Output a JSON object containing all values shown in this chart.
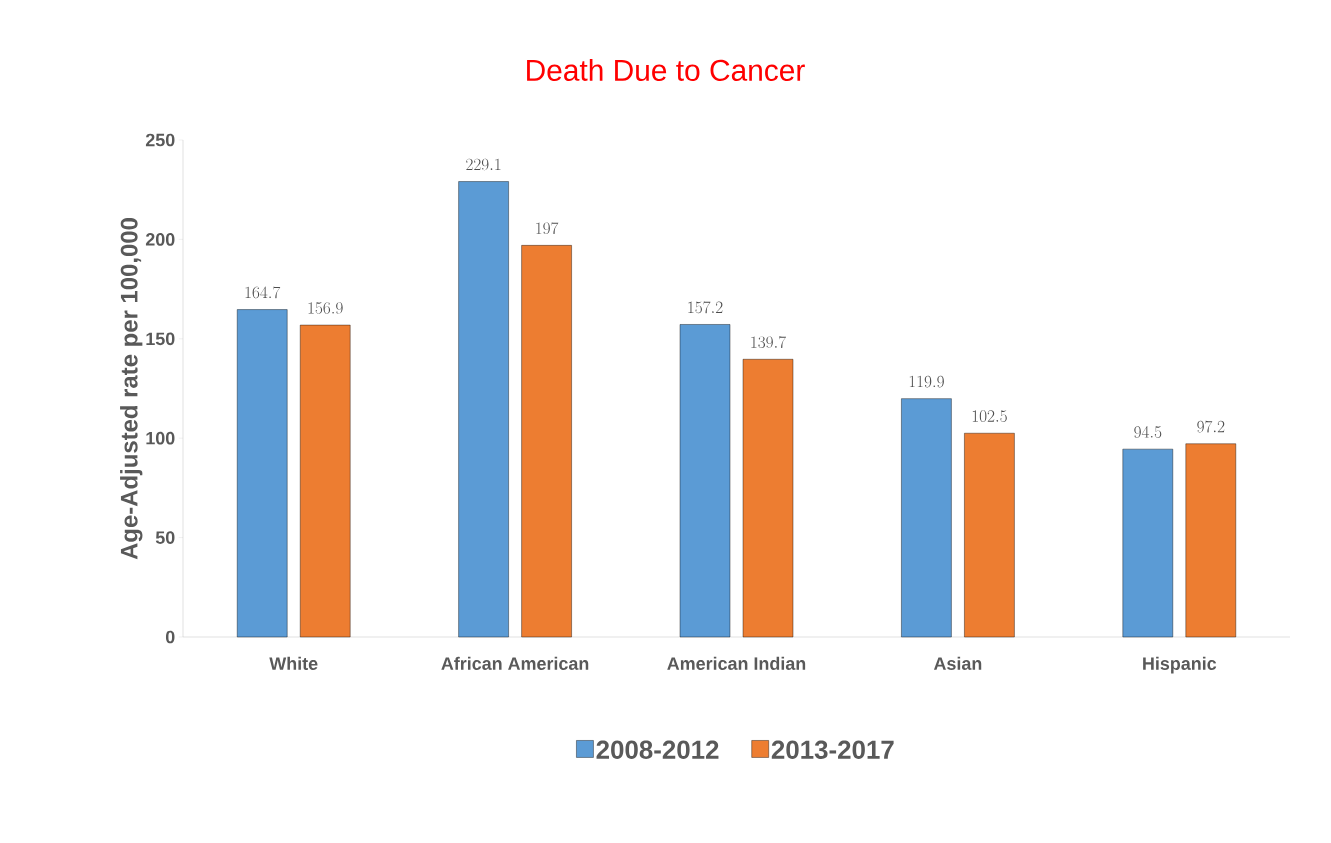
{
  "chart_data": {
    "type": "bar",
    "title": "Death Due to Cancer",
    "ylabel": "Age-Adjusted  rate per 100,000",
    "categories": [
      "White",
      "African American",
      "American Indian",
      "Asian",
      "Hispanic"
    ],
    "series": [
      {
        "name": "2008-2012",
        "color": "#5b9bd5",
        "values": [
          164.7,
          229.1,
          157.2,
          119.9,
          94.5
        ]
      },
      {
        "name": "2013-2017",
        "color": "#ed7d31",
        "values": [
          156.9,
          197,
          139.7,
          102.5,
          97.2
        ]
      }
    ],
    "ylim": [
      0,
      250
    ],
    "yticks": [
      0,
      50,
      100,
      150,
      200,
      250
    ],
    "data_labels": true,
    "legend": "bottom",
    "grid": false
  }
}
